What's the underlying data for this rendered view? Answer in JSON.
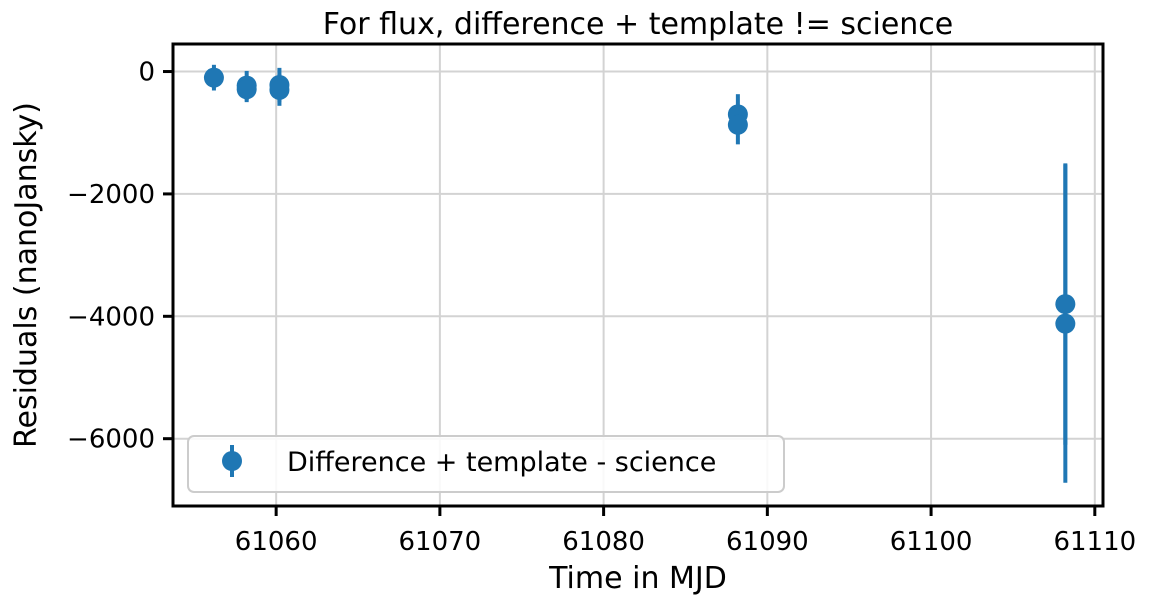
{
  "chart_data": {
    "type": "scatter",
    "title": "For flux, difference + template != science",
    "xlabel": "Time in MJD",
    "ylabel": "Residuals (nanoJansky)",
    "xlim": [
      61053.7,
      61110.5
    ],
    "ylim": [
      -7100,
      450
    ],
    "xticks": [
      61060,
      61070,
      61080,
      61090,
      61100,
      61110
    ],
    "yticks": [
      0,
      -2000,
      -4000,
      -6000
    ],
    "grid": true,
    "legend_position": "lower-left",
    "colors": {
      "series": "#1f77b4",
      "grid": "#d3d3d3",
      "axis": "#000000"
    },
    "series": [
      {
        "name": "Difference + template - science",
        "marker": "circle-with-errorbar",
        "points": [
          {
            "x": 61056.2,
            "y": -100,
            "yerr": 210
          },
          {
            "x": 61058.2,
            "y": -230,
            "yerr": 240
          },
          {
            "x": 61058.2,
            "y": -290,
            "yerr": 210
          },
          {
            "x": 61060.2,
            "y": -220,
            "yerr": 280
          },
          {
            "x": 61060.2,
            "y": -300,
            "yerr": 260
          },
          {
            "x": 61088.2,
            "y": -700,
            "yerr": 330
          },
          {
            "x": 61088.2,
            "y": -870,
            "yerr": 320
          },
          {
            "x": 61108.2,
            "y": -3800,
            "yerr": 2300
          },
          {
            "x": 61108.2,
            "y": -4120,
            "yerr": 2600
          }
        ]
      }
    ]
  }
}
